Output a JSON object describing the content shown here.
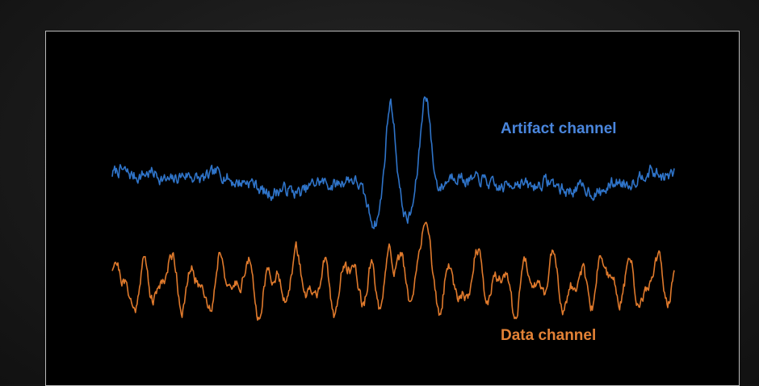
{
  "chart_data": {
    "type": "line",
    "title": "",
    "xlabel": "",
    "ylabel": "",
    "grid": false,
    "axes_visible": false,
    "background": "#000000",
    "x_range": [
      0,
      1
    ],
    "y_range": [
      -3,
      3
    ],
    "series": [
      {
        "name": "Artifact channel",
        "color": "#2f74c9",
        "label_color": "#4a86dd",
        "seed": 7,
        "noise": 0.16,
        "features": [
          {
            "kind": "gauss",
            "center": 0.495,
            "width": 0.008,
            "amplitude": 2.4
          },
          {
            "kind": "gauss",
            "center": 0.558,
            "width": 0.008,
            "amplitude": 2.4
          },
          {
            "kind": "gauss",
            "center": 0.468,
            "width": 0.012,
            "amplitude": -1.2
          },
          {
            "kind": "gauss",
            "center": 0.527,
            "width": 0.011,
            "amplitude": -1.3
          },
          {
            "kind": "gauss",
            "center": 0.585,
            "width": 0.013,
            "amplitude": -0.5
          },
          {
            "kind": "sine",
            "freq": 2.1,
            "phase": 0.4,
            "amplitude": 0.22
          },
          {
            "kind": "sine",
            "freq": 5.3,
            "phase": 1.2,
            "amplitude": 0.12
          },
          {
            "kind": "sine",
            "freq": 17.0,
            "phase": 0.3,
            "amplitude": 0.09
          }
        ],
        "offset": 0.0,
        "levels": {
          "min": -1.6,
          "max": 2.5
        }
      },
      {
        "name": "Data channel",
        "color": "#e07a2c",
        "label_color": "#e38236",
        "seed": 21,
        "noise": 0.14,
        "features": [
          {
            "kind": "gauss",
            "center": 0.493,
            "width": 0.007,
            "amplitude": 1.5
          },
          {
            "kind": "gauss",
            "center": 0.557,
            "width": 0.007,
            "amplitude": 1.3
          },
          {
            "kind": "gauss",
            "center": 0.475,
            "width": 0.009,
            "amplitude": -0.6
          },
          {
            "kind": "sine",
            "freq": 22.0,
            "phase": 0.0,
            "amplitude": 0.5
          },
          {
            "kind": "sine",
            "freq": 37.0,
            "phase": 1.1,
            "amplitude": 0.28
          },
          {
            "kind": "sine",
            "freq": 9.0,
            "phase": 2.2,
            "amplitude": 0.18
          }
        ],
        "offset": 0.0,
        "levels": {
          "min": -1.2,
          "max": 1.6
        }
      }
    ]
  }
}
